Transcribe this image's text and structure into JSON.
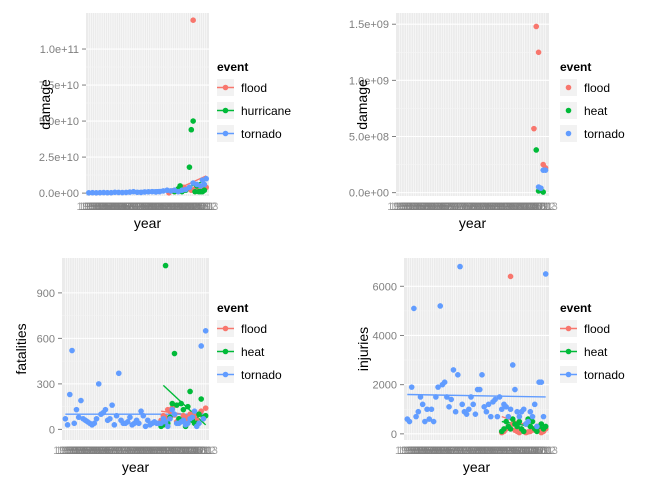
{
  "colors": {
    "panel_bg": "#ebebeb",
    "grid_major": "#ffffff",
    "grid_minor": "#f5f5f5",
    "flood": "#f8766d",
    "second": "#00ba38",
    "tornado": "#619cff"
  },
  "chart_data": [
    {
      "type": "scatter",
      "xlabel": "year",
      "ylabel": "damage",
      "x_tick_text": "1950 ... 2013 (overlapping year labels)",
      "ylim": [
        -2000000000.0,
        125000000000.0
      ],
      "y_ticks": [
        0,
        25000000000,
        50000000000,
        75000000000,
        100000000000
      ],
      "y_tick_labels": [
        "0.0e+00",
        "2.5e+10",
        "5.0e+10",
        "7.5e+10",
        "1.0e+11"
      ],
      "legend": {
        "title": "event",
        "position": "right",
        "labels": [
          "flood",
          "hurricane",
          "tornado"
        ]
      },
      "series": [
        {
          "name": "flood",
          "color": "#f8766d",
          "x": [
            1993,
            1995,
            1996,
            1998,
            2000,
            2001,
            2003,
            2005,
            2006,
            2007,
            2008,
            2009,
            2010,
            2011,
            2012,
            2013
          ],
          "y": [
            200000000.0,
            1500000000.0,
            1000000000.0,
            3000000000.0,
            2000000000.0,
            4000000000.0,
            3000000000.0,
            2000000000.0,
            120000000000.0,
            3000000000.0,
            5000000000.0,
            2000000000.0,
            3000000000.0,
            5000000000.0,
            3000000000.0,
            4000000000.0
          ],
          "trend": [
            [
              1993,
              200000000.0
            ],
            [
              2013,
              12000000000.0
            ]
          ]
        },
        {
          "name": "hurricane",
          "color": "#00ba38",
          "x": [
            1996,
            1998,
            1999,
            2000,
            2002,
            2004,
            2005,
            2006,
            2007,
            2008,
            2009,
            2010,
            2011,
            2012
          ],
          "y": [
            1000000000.0,
            3000000000.0,
            5000000000.0,
            1000000000.0,
            2000000000.0,
            18000000000.0,
            44000000000.0,
            50000000000.0,
            1000000000.0,
            5000000000.0,
            1000000000.0,
            1000000000.0,
            1000000000.0,
            2000000000.0
          ],
          "trend": [
            [
              1996,
              200000000.0
            ],
            [
              2013,
              9000000000.0
            ]
          ]
        },
        {
          "name": "tornado",
          "color": "#619cff",
          "x": [
            1950,
            1952,
            1954,
            1956,
            1958,
            1960,
            1962,
            1964,
            1966,
            1968,
            1970,
            1972,
            1974,
            1976,
            1978,
            1980,
            1982,
            1984,
            1986,
            1988,
            1990,
            1992,
            1994,
            1996,
            1998,
            2000,
            2002,
            2004,
            2006,
            2008,
            2010,
            2011,
            2012,
            2013
          ],
          "y": [
            200000000.0,
            300000000.0,
            200000000.0,
            300000000.0,
            400000000.0,
            300000000.0,
            300000000.0,
            600000000.0,
            500000000.0,
            400000000.0,
            500000000.0,
            700000000.0,
            1000000000.0,
            600000000.0,
            500000000.0,
            800000000.0,
            900000000.0,
            1000000000.0,
            800000000.0,
            1000000000.0,
            1500000000.0,
            2000000000.0,
            1500000000.0,
            2000000000.0,
            1000000000.0,
            2000000000.0,
            2500000000.0,
            4000000000.0,
            7000000000.0,
            6000000000.0,
            5000000000.0,
            9000000000.0,
            6000000000.0,
            10000000000.0
          ],
          "trend": [
            [
              1950,
              0
            ],
            [
              2013,
              4000000000.0
            ]
          ]
        }
      ]
    },
    {
      "type": "scatter",
      "xlabel": "year",
      "ylabel": "damage",
      "x_tick_text": "1950 ... 2013 (overlapping year labels)",
      "ylim": [
        -30000000.0,
        1600000000.0
      ],
      "y_ticks": [
        0,
        500000000,
        1000000000,
        1500000000
      ],
      "y_tick_labels": [
        "0.0e+00",
        "5.0e+08",
        "1.0e+09",
        "1.5e+09"
      ],
      "legend": {
        "title": "event",
        "position": "right",
        "labels": [
          "flood",
          "heat",
          "tornado"
        ]
      },
      "series": [
        {
          "name": "flood",
          "color": "#f8766d",
          "x": [
            2008,
            2009,
            2010,
            2012,
            2013
          ],
          "y": [
            570000000.0,
            1480000000.0,
            1250000000.0,
            250000000.0,
            220000000.0
          ],
          "trend": []
        },
        {
          "name": "heat",
          "color": "#00ba38",
          "x": [
            2009,
            2010,
            2011,
            2012
          ],
          "y": [
            380000000.0,
            15000000.0,
            20000000.0,
            5000000.0
          ],
          "trend": []
        },
        {
          "name": "tornado",
          "color": "#619cff",
          "x": [
            2010,
            2011,
            2012,
            2013
          ],
          "y": [
            50000000.0,
            40000000.0,
            200000000.0,
            200000000.0
          ],
          "trend": []
        }
      ]
    },
    {
      "type": "scatter",
      "xlabel": "year",
      "ylabel": "fatalities",
      "x_tick_text": "1950 ... 2013 (overlapping year labels)",
      "ylim": [
        -70,
        1130
      ],
      "y_ticks": [
        0,
        300,
        600,
        900
      ],
      "y_tick_labels": [
        "0",
        "300",
        "600",
        "900"
      ],
      "legend": {
        "title": "event",
        "position": "right",
        "labels": [
          "flood",
          "heat",
          "tornado"
        ]
      },
      "series": [
        {
          "name": "flood",
          "color": "#f8766d",
          "x": [
            1993,
            1994,
            1995,
            1996,
            1997,
            1998,
            1999,
            2000,
            2001,
            2002,
            2003,
            2004,
            2005,
            2006,
            2007,
            2008,
            2009,
            2010,
            2011,
            2012,
            2013
          ],
          "y": [
            60,
            90,
            80,
            130,
            120,
            140,
            95,
            50,
            70,
            60,
            90,
            80,
            60,
            100,
            85,
            90,
            60,
            100,
            120,
            80,
            140
          ],
          "trend": [
            [
              1993,
              120
            ],
            [
              2013,
              80
            ]
          ]
        },
        {
          "name": "heat",
          "color": "#00ba38",
          "x": [
            1993,
            1994,
            1995,
            1996,
            1997,
            1998,
            1999,
            2000,
            2001,
            2002,
            2003,
            2004,
            2005,
            2006,
            2007,
            2008,
            2009,
            2010,
            2011,
            2012,
            2013
          ],
          "y": [
            20,
            30,
            1080,
            40,
            80,
            170,
            500,
            160,
            70,
            170,
            130,
            20,
            150,
            250,
            60,
            40,
            40,
            100,
            200,
            80,
            90
          ],
          "trend": [
            [
              1994,
              290
            ],
            [
              2013,
              30
            ]
          ]
        },
        {
          "name": "tornado",
          "color": "#619cff",
          "x": [
            1950,
            1951,
            1952,
            1953,
            1954,
            1955,
            1956,
            1957,
            1958,
            1959,
            1960,
            1961,
            1962,
            1963,
            1964,
            1965,
            1966,
            1967,
            1968,
            1969,
            1970,
            1971,
            1972,
            1973,
            1974,
            1975,
            1976,
            1977,
            1978,
            1979,
            1980,
            1981,
            1982,
            1983,
            1984,
            1985,
            1986,
            1987,
            1988,
            1989,
            1990,
            1991,
            1992,
            1993,
            1994,
            1995,
            1996,
            1997,
            1998,
            1999,
            2000,
            2001,
            2002,
            2003,
            2004,
            2005,
            2006,
            2007,
            2008,
            2009,
            2010,
            2011,
            2012,
            2013
          ],
          "y": [
            70,
            30,
            230,
            520,
            40,
            130,
            80,
            190,
            70,
            60,
            50,
            40,
            30,
            40,
            70,
            300,
            100,
            110,
            130,
            60,
            70,
            160,
            30,
            90,
            370,
            60,
            40,
            40,
            50,
            80,
            30,
            40,
            60,
            40,
            120,
            90,
            20,
            60,
            30,
            40,
            50,
            40,
            40,
            40,
            70,
            50,
            20,
            70,
            130,
            100,
            40,
            40,
            50,
            60,
            30,
            40,
            70,
            80,
            120,
            20,
            40,
            550,
            70,
            650
          ],
          "trend": [
            [
              1950,
              100
            ],
            [
              2013,
              100
            ]
          ]
        }
      ]
    },
    {
      "type": "scatter",
      "xlabel": "year",
      "ylabel": "injuries",
      "x_tick_text": "1950 ... 2013 (overlapping year labels)",
      "ylim": [
        -250,
        7150
      ],
      "y_ticks": [
        0,
        2000,
        4000,
        6000
      ],
      "y_tick_labels": [
        "0",
        "2000",
        "4000",
        "6000"
      ],
      "legend": {
        "title": "event",
        "position": "right",
        "labels": [
          "flood",
          "heat",
          "tornado"
        ]
      },
      "series": [
        {
          "name": "flood",
          "color": "#f8766d",
          "x": [
            1993,
            1994,
            1995,
            1996,
            1997,
            1998,
            1999,
            2000,
            2001,
            2002,
            2003,
            2004,
            2005,
            2006,
            2007,
            2008,
            2009,
            2010,
            2011,
            2012,
            2013
          ],
          "y": [
            50,
            100,
            200,
            300,
            6400,
            400,
            150,
            100,
            50,
            200,
            100,
            50,
            80,
            100,
            200,
            150,
            300,
            250,
            50,
            100,
            200
          ],
          "trend": [
            [
              1993,
              700
            ],
            [
              2013,
              100
            ]
          ]
        },
        {
          "name": "heat",
          "color": "#00ba38",
          "x": [
            1993,
            1994,
            1995,
            1996,
            1997,
            1998,
            1999,
            2000,
            2001,
            2002,
            2003,
            2004,
            2005,
            2006,
            2007,
            2008,
            2009,
            2010,
            2011,
            2012,
            2013
          ],
          "y": [
            100,
            200,
            500,
            300,
            200,
            600,
            400,
            300,
            500,
            200,
            100,
            400,
            600,
            300,
            500,
            200,
            100,
            300,
            400,
            200,
            300
          ],
          "trend": [
            [
              1993,
              500
            ],
            [
              2013,
              200
            ]
          ]
        },
        {
          "name": "tornado",
          "color": "#619cff",
          "x": [
            1950,
            1951,
            1952,
            1953,
            1954,
            1955,
            1956,
            1957,
            1958,
            1959,
            1960,
            1961,
            1962,
            1963,
            1964,
            1965,
            1966,
            1967,
            1968,
            1969,
            1970,
            1971,
            1972,
            1973,
            1974,
            1975,
            1976,
            1977,
            1978,
            1979,
            1980,
            1981,
            1982,
            1983,
            1984,
            1985,
            1986,
            1987,
            1988,
            1989,
            1990,
            1991,
            1992,
            1993,
            1994,
            1995,
            1996,
            1997,
            1998,
            1999,
            2000,
            2001,
            2002,
            2003,
            2004,
            2005,
            2006,
            2007,
            2008,
            2009,
            2010,
            2011,
            2012,
            2013
          ],
          "y": [
            600,
            500,
            1900,
            5100,
            700,
            900,
            1500,
            1200,
            500,
            1000,
            600,
            1000,
            500,
            1500,
            1900,
            5200,
            2000,
            2100,
            1500,
            1100,
            1400,
            2600,
            900,
            2400,
            6800,
            1200,
            900,
            800,
            1000,
            1500,
            1200,
            800,
            1800,
            1800,
            2400,
            1100,
            900,
            1200,
            700,
            1300,
            1400,
            700,
            1500,
            1000,
            1200,
            1100,
            700,
            1000,
            2800,
            1800,
            900,
            700,
            900,
            1000,
            400,
            500,
            900,
            700,
            1200,
            300,
            2100,
            2100,
            700,
            6500
          ],
          "trend": [
            [
              1950,
              1600
            ],
            [
              2013,
              1500
            ]
          ]
        }
      ]
    }
  ]
}
